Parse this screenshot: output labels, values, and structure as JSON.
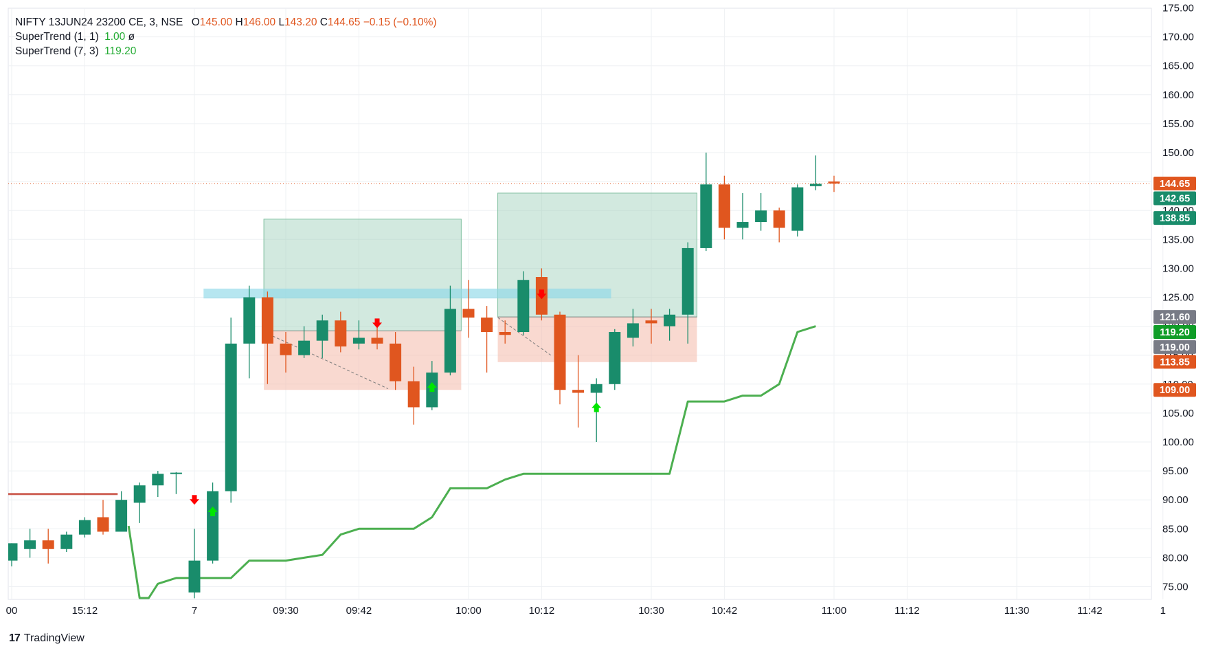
{
  "legend": {
    "symbol": "NIFTY 13JUN24 23200 CE, 3, NSE",
    "o_label": "O",
    "o": "145.00",
    "h_label": "H",
    "h": "146.00",
    "l_label": "L",
    "l": "143.20",
    "c_label": "C",
    "c": "144.65",
    "change": "−0.15 (−0.10%)",
    "st1_label": "SuperTrend (1, 1)",
    "st1_value": "1.00",
    "st1_extra": "ø",
    "st2_label": "SuperTrend (7, 3)",
    "st2_value": "119.20"
  },
  "branding": {
    "logo": "17",
    "name": "TradingView"
  },
  "colors": {
    "up": "#198c6b",
    "down": "#e0561f",
    "supertrend": "#4caf50",
    "old_line": "#c0392b",
    "zone_green": "#9ccfb8",
    "zone_red": "#f4b9aa",
    "zone_cyan": "#8fd8e8",
    "grid": "#eef0f3"
  },
  "chart_data": {
    "type": "candlestick",
    "ylim": [
      73,
      176
    ],
    "y_ticks": [
      "75.00",
      "80.00",
      "85.00",
      "90.00",
      "95.00",
      "100.00",
      "105.00",
      "110.00",
      "115.00",
      "120.00",
      "125.00",
      "130.00",
      "135.00",
      "140.00",
      "145.00",
      "150.00",
      "155.00",
      "160.00",
      "165.00",
      "170.00",
      "175.00"
    ],
    "x_ticks": [
      {
        "i": 0,
        "label": "00"
      },
      {
        "i": 4,
        "label": "15:12"
      },
      {
        "i": 10,
        "label": "7"
      },
      {
        "i": 15,
        "label": "09:30"
      },
      {
        "i": 19,
        "label": "09:42"
      },
      {
        "i": 25,
        "label": "10:00"
      },
      {
        "i": 29,
        "label": "10:12"
      },
      {
        "i": 35,
        "label": "10:30"
      },
      {
        "i": 39,
        "label": "10:42"
      },
      {
        "i": 45,
        "label": "11:00"
      },
      {
        "i": 49,
        "label": "11:12"
      },
      {
        "i": 55,
        "label": "11:30"
      },
      {
        "i": 59,
        "label": "11:42"
      },
      {
        "i": 63,
        "label": "1"
      }
    ],
    "candles": [
      {
        "o": 79.5,
        "h": 82.5,
        "l": 78.5,
        "c": 82.5
      },
      {
        "o": 81.5,
        "h": 85.0,
        "l": 80.0,
        "c": 83.0
      },
      {
        "o": 83.0,
        "h": 85.0,
        "l": 79.0,
        "c": 81.5
      },
      {
        "o": 81.5,
        "h": 84.5,
        "l": 81.0,
        "c": 84.0
      },
      {
        "o": 84.0,
        "h": 87.0,
        "l": 83.5,
        "c": 86.5
      },
      {
        "o": 87.0,
        "h": 90.0,
        "l": 84.0,
        "c": 84.5
      },
      {
        "o": 84.5,
        "h": 91.5,
        "l": 84.5,
        "c": 90.0
      },
      {
        "o": 89.5,
        "h": 93.0,
        "l": 86.0,
        "c": 92.5
      },
      {
        "o": 92.5,
        "h": 95.0,
        "l": 90.5,
        "c": 94.5
      },
      {
        "o": 94.5,
        "h": 94.8,
        "l": 91.0,
        "c": 94.7
      },
      {
        "o": 74.0,
        "h": 85.0,
        "l": 73.0,
        "c": 79.5
      },
      {
        "o": 79.5,
        "h": 93.0,
        "l": 79.0,
        "c": 91.5
      },
      {
        "o": 91.5,
        "h": 121.5,
        "l": 89.5,
        "c": 117.0
      },
      {
        "o": 117.0,
        "h": 127.0,
        "l": 111.0,
        "c": 125.0
      },
      {
        "o": 125.0,
        "h": 126.0,
        "l": 110.0,
        "c": 117.0
      },
      {
        "o": 117.0,
        "h": 119.0,
        "l": 112.0,
        "c": 115.0
      },
      {
        "o": 115.0,
        "h": 120.0,
        "l": 114.5,
        "c": 117.5
      },
      {
        "o": 117.5,
        "h": 122.0,
        "l": 114.5,
        "c": 121.0
      },
      {
        "o": 121.0,
        "h": 122.5,
        "l": 115.5,
        "c": 116.5
      },
      {
        "o": 117.0,
        "h": 121.0,
        "l": 116.0,
        "c": 118.0
      },
      {
        "o": 118.0,
        "h": 121.0,
        "l": 116.0,
        "c": 117.0
      },
      {
        "o": 117.0,
        "h": 119.0,
        "l": 109.0,
        "c": 110.5
      },
      {
        "o": 110.5,
        "h": 113.0,
        "l": 103.0,
        "c": 106.0
      },
      {
        "o": 106.0,
        "h": 114.0,
        "l": 105.5,
        "c": 112.0
      },
      {
        "o": 112.0,
        "h": 127.0,
        "l": 111.5,
        "c": 123.0
      },
      {
        "o": 123.0,
        "h": 128.0,
        "l": 118.0,
        "c": 121.5
      },
      {
        "o": 121.5,
        "h": 123.5,
        "l": 112.0,
        "c": 119.0
      },
      {
        "o": 119.0,
        "h": 121.0,
        "l": 117.0,
        "c": 118.5
      },
      {
        "o": 119.0,
        "h": 129.5,
        "l": 118.5,
        "c": 128.0
      },
      {
        "o": 128.5,
        "h": 130.0,
        "l": 121.0,
        "c": 122.0
      },
      {
        "o": 122.0,
        "h": 122.5,
        "l": 106.5,
        "c": 109.0
      },
      {
        "o": 109.0,
        "h": 115.0,
        "l": 102.5,
        "c": 108.5
      },
      {
        "o": 108.5,
        "h": 111.0,
        "l": 100.0,
        "c": 110.0
      },
      {
        "o": 110.0,
        "h": 119.5,
        "l": 109.0,
        "c": 119.0
      },
      {
        "o": 118.0,
        "h": 123.0,
        "l": 116.5,
        "c": 120.5
      },
      {
        "o": 121.0,
        "h": 123.0,
        "l": 117.0,
        "c": 120.5
      },
      {
        "o": 120.0,
        "h": 123.0,
        "l": 117.5,
        "c": 122.0
      },
      {
        "o": 122.0,
        "h": 134.5,
        "l": 117.0,
        "c": 133.5
      },
      {
        "o": 133.5,
        "h": 150.0,
        "l": 133.0,
        "c": 144.5
      },
      {
        "o": 144.5,
        "h": 146.0,
        "l": 135.0,
        "c": 137.0
      },
      {
        "o": 137.0,
        "h": 143.0,
        "l": 135.0,
        "c": 138.0
      },
      {
        "o": 138.0,
        "h": 143.0,
        "l": 136.5,
        "c": 140.0
      },
      {
        "o": 140.0,
        "h": 140.5,
        "l": 134.5,
        "c": 137.0
      },
      {
        "o": 136.5,
        "h": 144.5,
        "l": 135.5,
        "c": 144.0
      },
      {
        "o": 144.2,
        "h": 149.5,
        "l": 143.5,
        "c": 144.6
      },
      {
        "o": 145.0,
        "h": 146.0,
        "l": 143.2,
        "c": 144.65
      }
    ],
    "supertrend_7_3": [
      {
        "i": 6.4,
        "v": 85.5
      },
      {
        "i": 7.0,
        "v": 73.0
      },
      {
        "i": 7.3,
        "v": 73.0
      },
      {
        "i": 7.5,
        "v": 72.5
      },
      {
        "i": 8.0,
        "v": 75.5
      },
      {
        "i": 9.0,
        "v": 76.5
      },
      {
        "i": 12.0,
        "v": 76.5
      },
      {
        "i": 13.0,
        "v": 79.5
      },
      {
        "i": 15.0,
        "v": 79.5
      },
      {
        "i": 16.0,
        "v": 80.0
      },
      {
        "i": 17.0,
        "v": 80.5
      },
      {
        "i": 18.0,
        "v": 84.0
      },
      {
        "i": 19.0,
        "v": 85.0
      },
      {
        "i": 22.0,
        "v": 85.0
      },
      {
        "i": 23.0,
        "v": 87.0
      },
      {
        "i": 24.0,
        "v": 92.0
      },
      {
        "i": 26.0,
        "v": 92.0
      },
      {
        "i": 27.0,
        "v": 93.5
      },
      {
        "i": 28.0,
        "v": 94.5
      },
      {
        "i": 36.0,
        "v": 94.5
      },
      {
        "i": 37.0,
        "v": 107.0
      },
      {
        "i": 39.0,
        "v": 107.0
      },
      {
        "i": 40.0,
        "v": 108.0
      },
      {
        "i": 41.0,
        "v": 108.0
      },
      {
        "i": 42.0,
        "v": 110.0
      },
      {
        "i": 43.0,
        "v": 119.0
      },
      {
        "i": 44.0,
        "v": 120.0
      }
    ],
    "old_line": {
      "i0": -0.5,
      "i1": 5.8,
      "v": 91.0
    },
    "signals": [
      {
        "i": 10,
        "type": "sell",
        "v": 90.0
      },
      {
        "i": 11,
        "type": "buy",
        "v": 88.0
      },
      {
        "i": 20,
        "type": "sell",
        "v": 120.5
      },
      {
        "i": 23,
        "type": "buy",
        "v": 109.5
      },
      {
        "i": 29,
        "type": "sell",
        "v": 125.5
      },
      {
        "i": 32,
        "type": "buy",
        "v": 106.0
      }
    ],
    "zones": [
      {
        "kind": "green",
        "i0": 13.8,
        "i1": 24.6,
        "top": 138.5,
        "bottom": 119.2
      },
      {
        "kind": "red",
        "i0": 13.8,
        "i1": 24.6,
        "top": 119.2,
        "bottom": 109.0
      },
      {
        "kind": "green",
        "i0": 26.6,
        "i1": 37.5,
        "top": 143.0,
        "bottom": 121.6
      },
      {
        "kind": "red",
        "i0": 26.6,
        "i1": 37.5,
        "top": 121.6,
        "bottom": 113.8
      },
      {
        "kind": "cyan",
        "i0": 10.5,
        "i1": 32.8,
        "top": 126.5,
        "bottom": 124.8
      }
    ],
    "dashed_lines": [
      {
        "i0": 13.8,
        "v0": 119.0,
        "i1": 20.6,
        "v1": 109.2
      },
      {
        "i0": 26.6,
        "v0": 121.5,
        "i1": 29.5,
        "v1": 115.0
      }
    ],
    "current_price": 144.65,
    "price_tags": [
      {
        "v": 144.65,
        "label": "144.65",
        "color": "#e0561f"
      },
      {
        "v": 142.1,
        "label": "142.65",
        "color": "#198c6b"
      },
      {
        "v": 138.7,
        "label": "138.85",
        "color": "#198c6b"
      },
      {
        "v": 121.6,
        "label": "121.60",
        "color": "#787b86"
      },
      {
        "v": 119.0,
        "label": "119.20",
        "color": "#0f9d28"
      },
      {
        "v": 116.4,
        "label": "119.00",
        "color": "#787b86"
      },
      {
        "v": 113.85,
        "label": "113.85",
        "color": "#e0561f"
      },
      {
        "v": 109.0,
        "label": "109.00",
        "color": "#e0561f"
      }
    ]
  }
}
